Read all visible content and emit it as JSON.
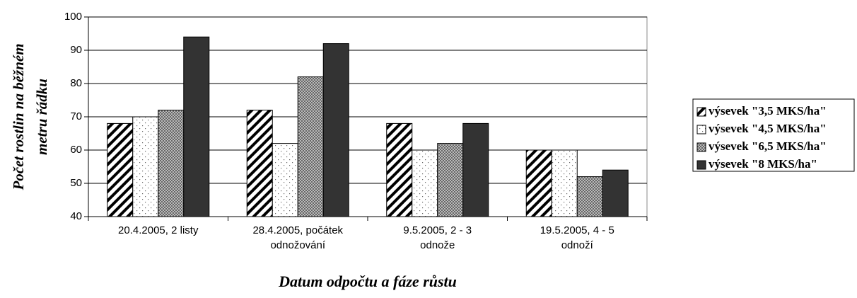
{
  "chart_data": {
    "type": "bar",
    "ylabel": [
      "Počet rostlin na běžném",
      "metru řádku"
    ],
    "xlabel": "Datum odpočtu a fáze růstu",
    "categories": [
      [
        "20.4.2005, 2 listy"
      ],
      [
        "28.4.2005, počátek",
        "odnožování"
      ],
      [
        "9.5.2005, 2 - 3",
        "odnože"
      ],
      [
        "19.5.2005, 4 - 5",
        "odnoží"
      ]
    ],
    "series": [
      {
        "name": "výsevek \"3,5 MKS/ha\"",
        "color": "#000000",
        "pattern": "hatch",
        "values": [
          68,
          72,
          68,
          60
        ]
      },
      {
        "name": "výsevek \"4,5 MKS/ha\"",
        "color": "#ffffff",
        "pattern": "dots",
        "values": [
          70,
          62,
          60,
          60
        ]
      },
      {
        "name": "výsevek \"6,5 MKS/ha\"",
        "color": "#999999",
        "pattern": "checker",
        "values": [
          72,
          82,
          62,
          52
        ]
      },
      {
        "name": "výsevek \"8 MKS/ha\"",
        "color": "#333333",
        "pattern": "solid",
        "values": [
          94,
          92,
          68,
          54
        ]
      }
    ],
    "ylim": [
      40,
      100
    ],
    "yticks": [
      40,
      50,
      60,
      70,
      80,
      90,
      100
    ],
    "grid": true,
    "legend": "right"
  }
}
